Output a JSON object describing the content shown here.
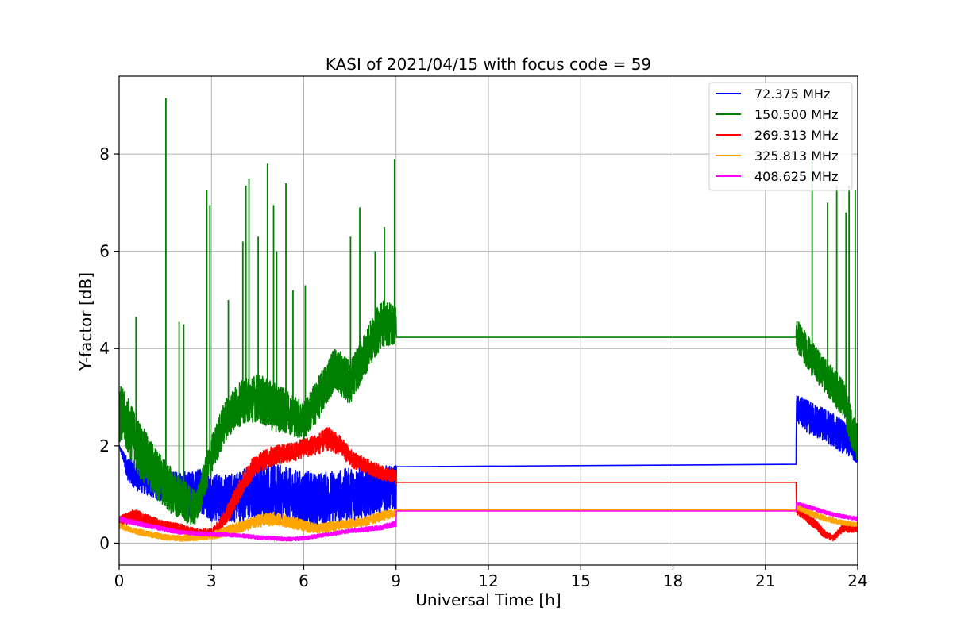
{
  "chart_data": {
    "type": "line",
    "title": "KASI of 2021/04/15 with focus code = 59",
    "xlabel": "Universal Time [h]",
    "ylabel": "Y-factor [dB]",
    "xlim": [
      0,
      24
    ],
    "ylim": [
      -0.45,
      9.6
    ],
    "xticks": [
      0,
      3,
      6,
      9,
      12,
      15,
      18,
      21,
      24
    ],
    "yticks": [
      0,
      2,
      4,
      6,
      8
    ],
    "grid": true,
    "legend_position": "upper right",
    "series": [
      {
        "name": " 72.375 MHz",
        "color": "#0000ff",
        "x": [
          0,
          0.3,
          0.6,
          1.0,
          1.5,
          2.0,
          2.3,
          2.6,
          3.0,
          3.5,
          4.0,
          4.5,
          5.0,
          5.5,
          6.0,
          6.5,
          7.0,
          7.5,
          8.0,
          8.5,
          9.0,
          9.01,
          22.0,
          22.01,
          22.5,
          23.0,
          23.5,
          24.0
        ],
        "y": [
          2.0,
          1.5,
          1.35,
          1.25,
          1.15,
          1.1,
          1.0,
          1.1,
          0.95,
          0.9,
          1.0,
          1.05,
          1.05,
          0.95,
          0.9,
          0.9,
          0.95,
          1.0,
          1.05,
          1.1,
          1.15,
          1.57,
          1.62,
          2.75,
          2.55,
          2.4,
          2.2,
          1.85
        ],
        "band": [
          0,
          0.25,
          0.28,
          0.3,
          0.32,
          0.4,
          0.45,
          0.45,
          0.5,
          0.5,
          0.55,
          0.6,
          0.6,
          0.6,
          0.58,
          0.55,
          0.55,
          0.55,
          0.55,
          0.5,
          0.45,
          0,
          0,
          0.3,
          0.35,
          0.35,
          0.35,
          0.2
        ]
      },
      {
        "name": "150.500 MHz",
        "color": "#008000",
        "x": [
          0,
          0.3,
          0.6,
          1.0,
          1.5,
          2.0,
          2.5,
          3.0,
          3.5,
          4.0,
          4.5,
          5.0,
          5.5,
          6.0,
          6.5,
          7.0,
          7.5,
          8.0,
          8.5,
          9.0,
          9.01,
          22.0,
          22.01,
          22.5,
          23.0,
          23.5,
          24.0
        ],
        "y": [
          2.7,
          2.4,
          2.0,
          1.6,
          1.2,
          0.9,
          0.7,
          1.8,
          2.6,
          2.9,
          3.0,
          2.8,
          2.7,
          2.5,
          3.0,
          3.6,
          3.3,
          3.9,
          4.5,
          4.5,
          4.23,
          4.23,
          4.3,
          3.8,
          3.4,
          3.0,
          2.0
        ],
        "band": [
          0.6,
          0.6,
          0.6,
          0.55,
          0.5,
          0.45,
          0.35,
          0.4,
          0.45,
          0.45,
          0.5,
          0.5,
          0.45,
          0.4,
          0.45,
          0.45,
          0.45,
          0.45,
          0.5,
          0.4,
          0,
          0,
          0.35,
          0.35,
          0.35,
          0.4,
          0.4
        ],
        "spikes": [
          {
            "x": 1.52,
            "y": 9.15
          },
          {
            "x": 2.85,
            "y": 7.25
          },
          {
            "x": 2.95,
            "y": 6.95
          },
          {
            "x": 0.55,
            "y": 4.65
          },
          {
            "x": 1.95,
            "y": 4.55
          },
          {
            "x": 2.1,
            "y": 4.5
          },
          {
            "x": 3.55,
            "y": 5.0
          },
          {
            "x": 4.02,
            "y": 6.2
          },
          {
            "x": 4.12,
            "y": 7.35
          },
          {
            "x": 4.22,
            "y": 7.5
          },
          {
            "x": 4.52,
            "y": 6.3
          },
          {
            "x": 4.82,
            "y": 7.8
          },
          {
            "x": 5.02,
            "y": 6.95
          },
          {
            "x": 5.12,
            "y": 6.0
          },
          {
            "x": 5.42,
            "y": 7.4
          },
          {
            "x": 5.65,
            "y": 5.2
          },
          {
            "x": 6.05,
            "y": 5.3
          },
          {
            "x": 7.52,
            "y": 6.3
          },
          {
            "x": 7.82,
            "y": 6.9
          },
          {
            "x": 8.32,
            "y": 6.0
          },
          {
            "x": 8.62,
            "y": 6.5
          },
          {
            "x": 8.95,
            "y": 7.9
          },
          {
            "x": 22.52,
            "y": 7.9
          },
          {
            "x": 23.02,
            "y": 7.0
          },
          {
            "x": 23.32,
            "y": 7.35
          },
          {
            "x": 23.62,
            "y": 6.8
          },
          {
            "x": 23.72,
            "y": 7.35
          },
          {
            "x": 23.92,
            "y": 7.25
          }
        ]
      },
      {
        "name": "269.313 MHz",
        "color": "#ff0000",
        "x": [
          0,
          0.5,
          1.0,
          1.5,
          2.0,
          2.5,
          3.0,
          3.3,
          3.6,
          4.0,
          4.4,
          5.0,
          5.5,
          6.0,
          6.5,
          6.8,
          7.2,
          7.6,
          8.0,
          8.5,
          9.0,
          9.01,
          22.0,
          22.01,
          22.3,
          22.6,
          22.9,
          23.2,
          23.5,
          24.0
        ],
        "y": [
          0.45,
          0.55,
          0.45,
          0.35,
          0.3,
          0.2,
          0.2,
          0.4,
          0.7,
          1.2,
          1.6,
          1.8,
          1.85,
          1.95,
          2.05,
          2.15,
          2.0,
          1.7,
          1.6,
          1.45,
          1.35,
          1.25,
          1.25,
          0.7,
          0.55,
          0.4,
          0.2,
          0.1,
          0.3,
          0.3
        ],
        "band": [
          0.1,
          0.15,
          0.12,
          0.1,
          0.1,
          0.1,
          0.1,
          0.15,
          0.2,
          0.22,
          0.22,
          0.2,
          0.2,
          0.2,
          0.22,
          0.25,
          0.2,
          0.18,
          0.15,
          0.15,
          0.15,
          0,
          0,
          0.1,
          0.1,
          0.1,
          0.08,
          0.06,
          0.08,
          0.08
        ]
      },
      {
        "name": "325.813 MHz",
        "color": "#ffa500",
        "x": [
          0,
          0.5,
          1.0,
          1.5,
          2.0,
          2.5,
          3.0,
          3.5,
          4.0,
          4.5,
          5.0,
          5.5,
          6.0,
          6.5,
          7.0,
          7.5,
          8.0,
          8.5,
          9.0,
          9.01,
          22.0,
          22.01,
          22.5,
          23.0,
          23.5,
          24.0
        ],
        "y": [
          0.35,
          0.25,
          0.18,
          0.12,
          0.1,
          0.12,
          0.15,
          0.25,
          0.35,
          0.45,
          0.5,
          0.45,
          0.35,
          0.3,
          0.35,
          0.4,
          0.45,
          0.55,
          0.62,
          0.68,
          0.68,
          0.75,
          0.6,
          0.5,
          0.42,
          0.38
        ],
        "band": [
          0.06,
          0.06,
          0.06,
          0.06,
          0.06,
          0.07,
          0.08,
          0.1,
          0.12,
          0.13,
          0.14,
          0.13,
          0.12,
          0.1,
          0.1,
          0.1,
          0.1,
          0.1,
          0.08,
          0,
          0,
          0.06,
          0.06,
          0.06,
          0.05,
          0.05
        ]
      },
      {
        "name": "408.625 MHz",
        "color": "#ff00ff",
        "x": [
          0,
          0.5,
          1.0,
          1.5,
          2.0,
          2.5,
          3.0,
          3.5,
          4.0,
          4.5,
          5.0,
          5.5,
          6.0,
          6.5,
          7.0,
          7.5,
          8.0,
          8.5,
          9.0,
          9.01,
          22.0,
          22.01,
          22.5,
          23.0,
          23.5,
          24.0
        ],
        "y": [
          0.5,
          0.42,
          0.35,
          0.28,
          0.22,
          0.2,
          0.18,
          0.17,
          0.15,
          0.12,
          0.1,
          0.08,
          0.1,
          0.15,
          0.2,
          0.25,
          0.28,
          0.32,
          0.4,
          0.66,
          0.66,
          0.82,
          0.72,
          0.62,
          0.55,
          0.5
        ],
        "band": [
          0.05,
          0.05,
          0.05,
          0.05,
          0.04,
          0.04,
          0.04,
          0.04,
          0.04,
          0.04,
          0.04,
          0.04,
          0.04,
          0.04,
          0.04,
          0.04,
          0.05,
          0.05,
          0.06,
          0,
          0,
          0.04,
          0.04,
          0.04,
          0.04,
          0.04
        ]
      }
    ]
  }
}
